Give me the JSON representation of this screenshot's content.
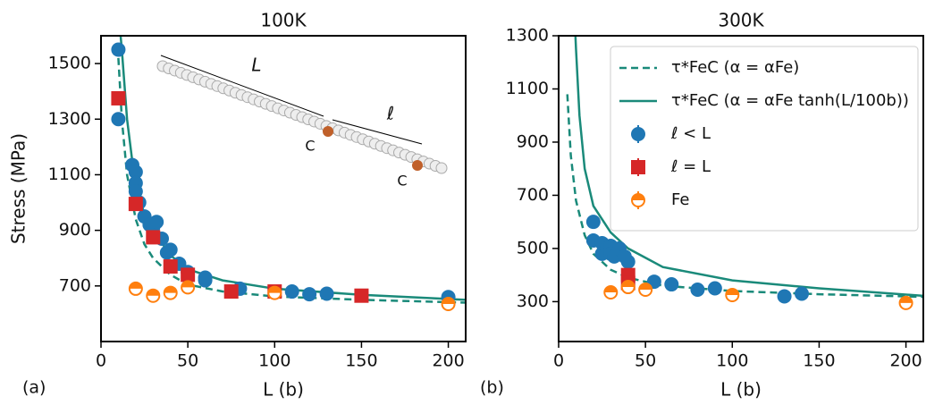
{
  "chart_data": [
    {
      "type": "line",
      "title": "100K",
      "panel_label": "(a)",
      "xlabel": "L (b)",
      "ylabel": "Stress (MPa)",
      "xlim": [
        0,
        210
      ],
      "xticks": [
        0,
        50,
        100,
        150,
        200
      ],
      "ylim": [
        500,
        1600
      ],
      "yticks": [
        700,
        900,
        1100,
        1300,
        1500
      ],
      "annotations": [
        {
          "text": "L"
        },
        {
          "text": "ℓ"
        },
        {
          "text": "C"
        },
        {
          "text": "C"
        }
      ],
      "series": [
        {
          "linestyle": "dashed",
          "color": "#1a8a7a",
          "x": [
            10,
            12,
            15,
            20,
            25,
            30,
            40,
            50,
            70,
            100,
            150,
            210
          ],
          "values": [
            1520,
            1300,
            1100,
            940,
            850,
            800,
            740,
            705,
            680,
            662,
            650,
            640
          ]
        },
        {
          "linestyle": "solid",
          "color": "#1a8a7a",
          "x": [
            11,
            12,
            15,
            20,
            25,
            30,
            40,
            50,
            70,
            100,
            150,
            210
          ],
          "values": [
            1620,
            1550,
            1300,
            1050,
            960,
            900,
            810,
            760,
            720,
            690,
            668,
            650
          ]
        },
        {
          "marker": "circle",
          "color": "#1f77b4",
          "x": [
            10,
            10,
            18,
            20,
            20,
            20,
            22,
            25,
            28,
            30,
            32,
            35,
            38,
            40,
            45,
            50,
            60,
            60,
            80,
            110,
            120,
            130,
            200
          ],
          "values": [
            1550,
            1300,
            1135,
            1110,
            1070,
            1040,
            1000,
            950,
            920,
            910,
            930,
            870,
            820,
            830,
            780,
            750,
            720,
            730,
            690,
            680,
            670,
            672,
            660
          ]
        },
        {
          "marker": "square",
          "color": "#d62728",
          "x": [
            10,
            20,
            30,
            40,
            50,
            75,
            100,
            150
          ],
          "values": [
            1375,
            995,
            875,
            770,
            740,
            680,
            680,
            665
          ]
        },
        {
          "marker": "half-circle",
          "color": "#ff7f0e",
          "x": [
            20,
            30,
            40,
            50,
            100,
            200
          ],
          "values": [
            690,
            665,
            675,
            695,
            675,
            635
          ]
        }
      ]
    },
    {
      "type": "line",
      "title": "300K",
      "panel_label": "(b)",
      "xlabel": "L (b)",
      "legend": "upper right",
      "xlim": [
        0,
        210
      ],
      "xticks": [
        0,
        50,
        100,
        150,
        200
      ],
      "ylim": [
        150,
        1300
      ],
      "yticks": [
        300,
        500,
        700,
        900,
        1100,
        1300
      ],
      "series": [
        {
          "name": "τ*FeC (α = αFe)",
          "linestyle": "dashed",
          "color": "#1a8a7a",
          "x": [
            5,
            7,
            10,
            15,
            20,
            30,
            40,
            60,
            100,
            150,
            210
          ],
          "values": [
            1080,
            850,
            680,
            550,
            480,
            420,
            390,
            360,
            340,
            328,
            318
          ]
        },
        {
          "name": "τ*FeC (α = αFe tanh(L/100b))",
          "linestyle": "solid",
          "color": "#1a8a7a",
          "x": [
            9,
            10,
            12,
            15,
            20,
            30,
            40,
            60,
            100,
            150,
            210
          ],
          "values": [
            1400,
            1250,
            1000,
            800,
            660,
            560,
            500,
            430,
            380,
            350,
            322
          ]
        },
        {
          "name": "ℓ < L",
          "marker": "circle",
          "color": "#1f77b4",
          "x": [
            20,
            20,
            25,
            25,
            28,
            30,
            30,
            32,
            35,
            38,
            40,
            55,
            65,
            80,
            90,
            130,
            140
          ],
          "values": [
            600,
            530,
            520,
            480,
            500,
            510,
            480,
            470,
            500,
            470,
            450,
            375,
            365,
            345,
            350,
            320,
            330
          ]
        },
        {
          "name": "ℓ = L",
          "marker": "square",
          "color": "#d62728",
          "x": [
            40,
            40
          ],
          "values": [
            400,
            370
          ]
        },
        {
          "name": "Fe",
          "marker": "half-circle",
          "color": "#ff7f0e",
          "x": [
            30,
            40,
            50,
            100,
            200
          ],
          "values": [
            335,
            355,
            345,
            325,
            295
          ]
        }
      ]
    }
  ]
}
